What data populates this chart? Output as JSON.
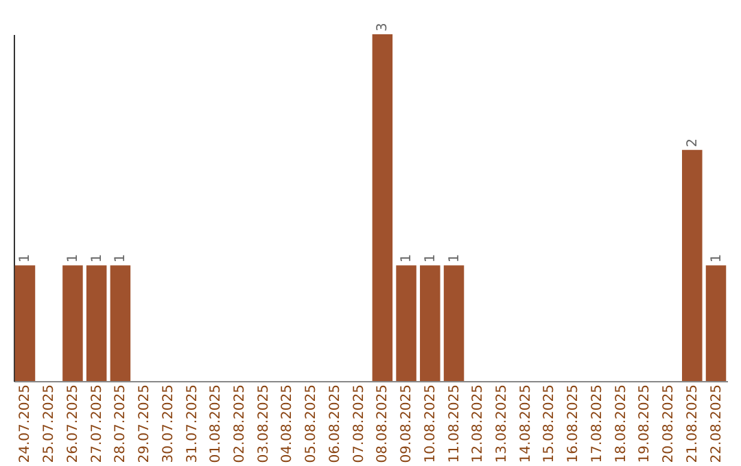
{
  "chart_data": {
    "type": "bar",
    "categories": [
      "24.07.2025",
      "25.07.2025",
      "26.07.2025",
      "27.07.2025",
      "28.07.2025",
      "29.07.2025",
      "30.07.2025",
      "31.07.2025",
      "01.08.2025",
      "02.08.2025",
      "03.08.2025",
      "04.08.2025",
      "05.08.2025",
      "06.08.2025",
      "07.08.2025",
      "08.08.2025",
      "09.08.2025",
      "10.08.2025",
      "11.08.2025",
      "12.08.2025",
      "13.08.2025",
      "14.08.2025",
      "15.08.2025",
      "16.08.2025",
      "17.08.2025",
      "18.08.2025",
      "19.08.2025",
      "20.08.2025",
      "21.08.2025",
      "22.08.2025"
    ],
    "values": [
      1,
      0,
      1,
      1,
      1,
      0,
      0,
      0,
      0,
      0,
      0,
      0,
      0,
      0,
      0,
      3,
      1,
      1,
      1,
      0,
      0,
      0,
      0,
      0,
      0,
      0,
      0,
      0,
      2,
      1
    ],
    "value_labels": [
      "1",
      null,
      "1",
      "1",
      "1",
      null,
      null,
      null,
      null,
      null,
      null,
      null,
      null,
      null,
      null,
      "3",
      "1",
      "1",
      "1",
      null,
      null,
      null,
      null,
      null,
      null,
      null,
      null,
      null,
      "2",
      "1"
    ],
    "color": "#a0522d",
    "tick_labels": "x",
    "grid": false
  }
}
